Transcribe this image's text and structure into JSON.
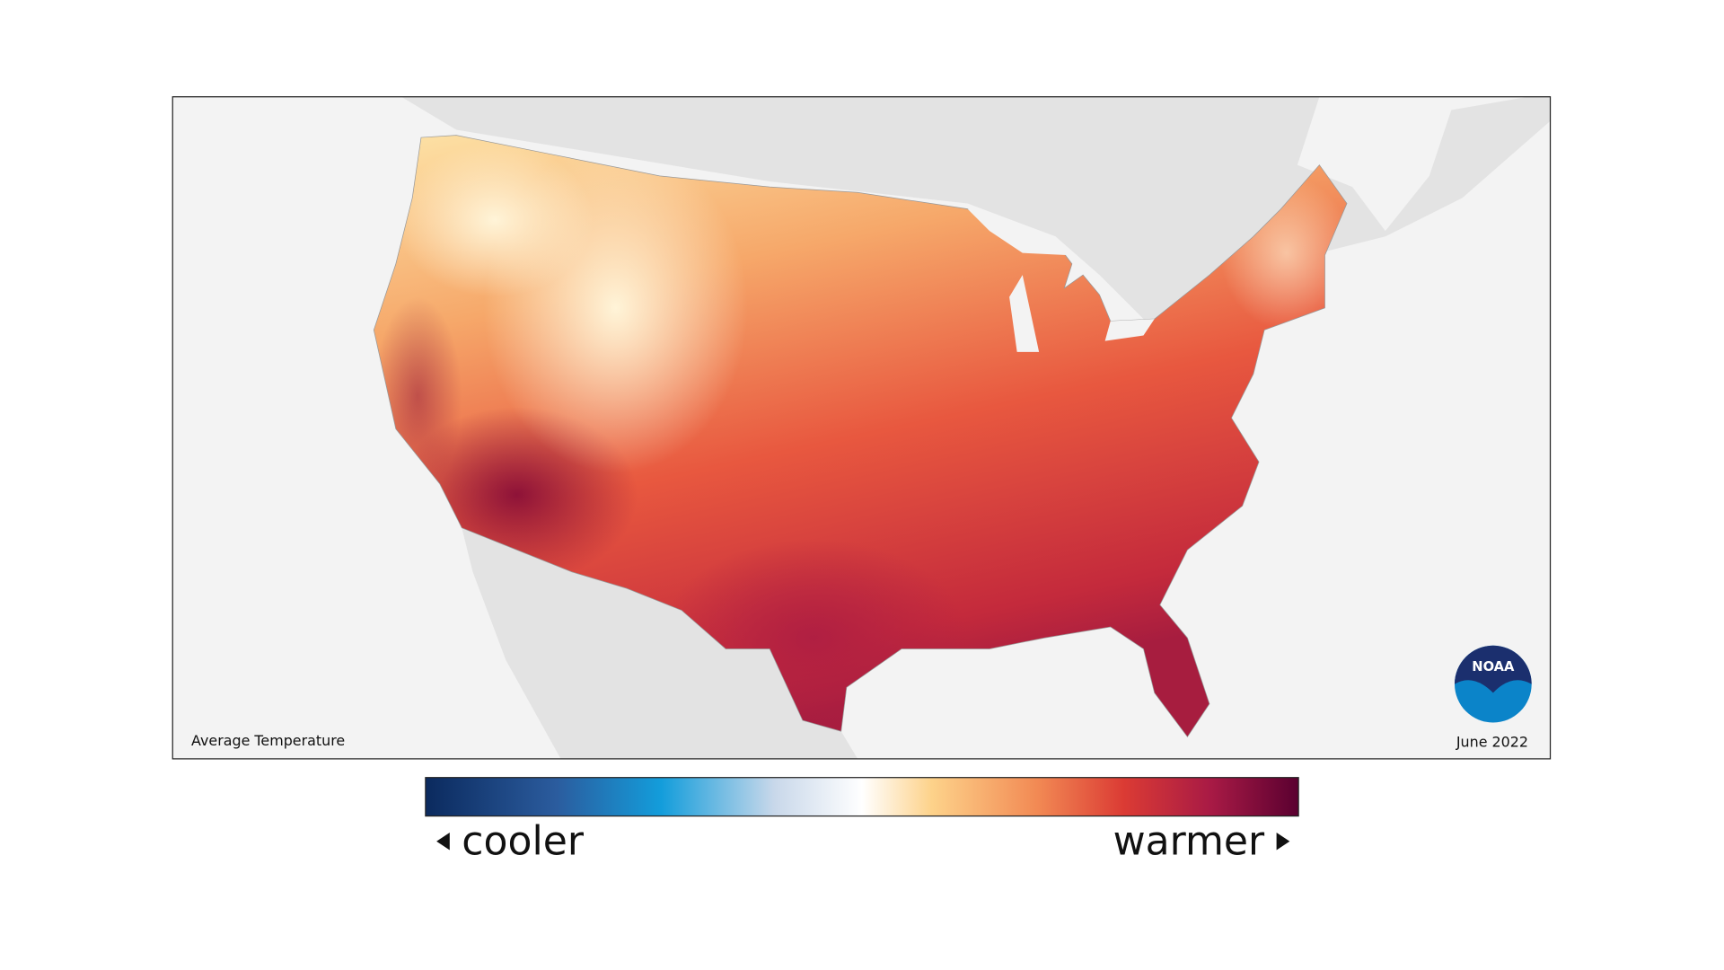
{
  "map": {
    "label": "Average Temperature",
    "date": "June 2022"
  },
  "legend": {
    "low_label": "cooler",
    "high_label": "warmer"
  },
  "logo": {
    "text": "NOAA"
  }
}
